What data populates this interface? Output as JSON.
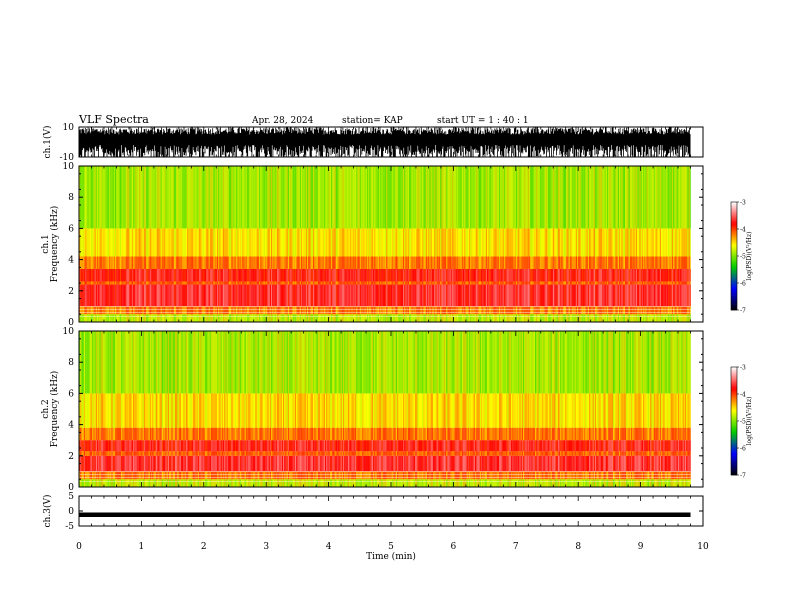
{
  "header": {
    "title": "VLF Spectra",
    "date": "Apr. 28, 2024",
    "station": "station= KAP",
    "start_ut": "start UT =  1 : 40 : 1"
  },
  "chart_data": [
    {
      "id": "ch1_waveform",
      "type": "line",
      "ylabel": "ch.1(V)",
      "ylim": [
        -10,
        10
      ],
      "yticks": [
        -10,
        10
      ],
      "xlim": [
        0,
        10
      ],
      "note_fill": "dense signal spanning roughly -10 to 10 V from 0 to 9.8 min"
    },
    {
      "id": "ch1_spectrogram",
      "type": "heatmap",
      "ylabel": "ch.1\nFrequency (kHz)",
      "xlim": [
        0,
        10
      ],
      "ylim": [
        0,
        10
      ],
      "yticks": [
        0,
        2,
        4,
        6,
        8,
        10
      ],
      "data_xmax": 9.8,
      "bands": [
        {
          "from": 0.0,
          "to": 0.5,
          "level": -4.6
        },
        {
          "from": 0.5,
          "to": 1.0,
          "level": -4.0
        },
        {
          "from": 1.0,
          "to": 2.4,
          "level": -3.5
        },
        {
          "from": 2.4,
          "to": 2.6,
          "level": -3.9
        },
        {
          "from": 2.6,
          "to": 3.4,
          "level": -3.6
        },
        {
          "from": 3.4,
          "to": 4.2,
          "level": -4.0
        },
        {
          "from": 4.2,
          "to": 6.0,
          "level": -4.35
        },
        {
          "from": 6.0,
          "to": 10.0,
          "level": -4.7
        }
      ],
      "colorbar": {
        "label": "log(PSD)(V²/Hz)",
        "range": [
          -7,
          -3
        ],
        "ticks": [
          -7,
          -6,
          -5,
          -4,
          -3
        ]
      }
    },
    {
      "id": "ch2_spectrogram",
      "type": "heatmap",
      "ylabel": "ch.2\nFrequency (kHz)",
      "xlim": [
        0,
        10
      ],
      "ylim": [
        0,
        10
      ],
      "yticks": [
        0,
        2,
        4,
        6,
        8,
        10
      ],
      "data_xmax": 9.8,
      "bands": [
        {
          "from": 0.0,
          "to": 0.5,
          "level": -4.6
        },
        {
          "from": 0.5,
          "to": 1.0,
          "level": -4.0
        },
        {
          "from": 1.0,
          "to": 2.0,
          "level": -3.5
        },
        {
          "from": 2.0,
          "to": 2.3,
          "level": -3.9
        },
        {
          "from": 2.3,
          "to": 3.0,
          "level": -3.6
        },
        {
          "from": 3.0,
          "to": 3.8,
          "level": -4.0
        },
        {
          "from": 3.8,
          "to": 6.0,
          "level": -4.35
        },
        {
          "from": 6.0,
          "to": 10.0,
          "level": -4.7
        }
      ],
      "colorbar": {
        "label": "log(PSD)(V²/Hz)",
        "range": [
          -7,
          -3
        ],
        "ticks": [
          -7,
          -6,
          -5,
          -4,
          -3
        ]
      }
    },
    {
      "id": "ch3_waveform",
      "type": "line",
      "ylabel": "ch.3(V)",
      "xlabel": "Time (min)",
      "xlim": [
        0,
        10
      ],
      "ylim": [
        -5,
        5
      ],
      "yticks": [
        -5,
        0,
        5
      ],
      "xticks": [
        0,
        1,
        2,
        3,
        4,
        5,
        6,
        7,
        8,
        9,
        10
      ],
      "band": [
        -2,
        -0.5
      ],
      "data_xmax": 9.8
    }
  ],
  "colors": {
    "axis": "#000000",
    "background": "#ffffff",
    "colormap": [
      "#000000",
      "#0000ff",
      "#00cc00",
      "#ffff00",
      "#ff0000",
      "#ffffff"
    ]
  }
}
